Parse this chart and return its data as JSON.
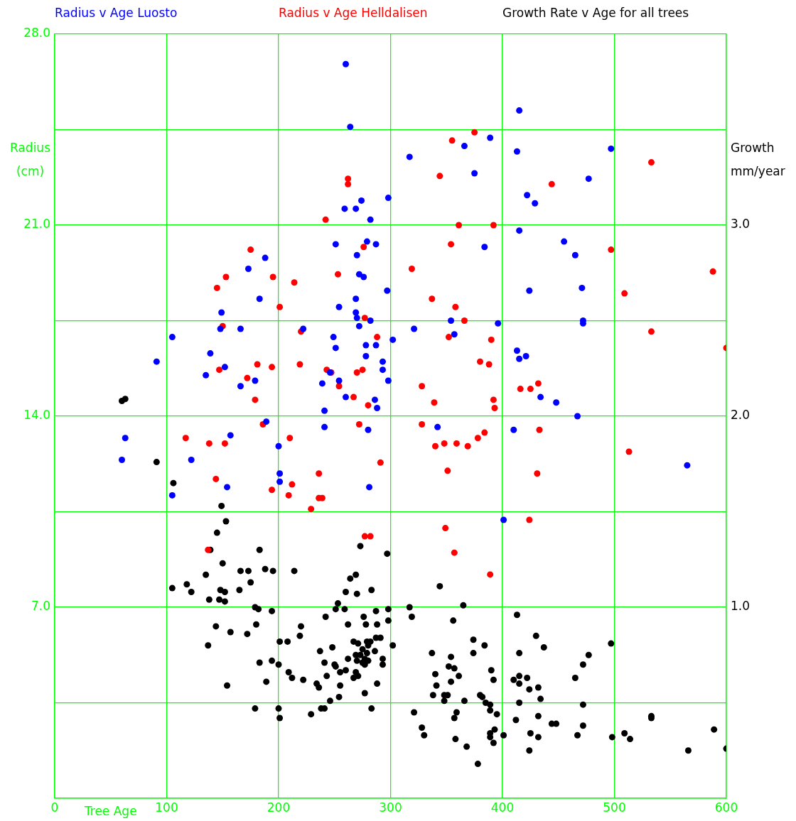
{
  "chart_data": {
    "type": "scatter",
    "xlabel": "Tree Age",
    "ylabel": "Radius\n(cm)",
    "y2label": "Growth\nmm/year",
    "xlim": [
      0,
      600
    ],
    "xticks": [
      0,
      100,
      200,
      300,
      400,
      500,
      600
    ],
    "ylim": [
      0,
      28
    ],
    "yticks": [
      {
        "value": 0,
        "label": null
      },
      {
        "value": 3.5,
        "label": null
      },
      {
        "value": 7,
        "label": "7.0"
      },
      {
        "value": 10.5,
        "label": null
      },
      {
        "value": 14,
        "label": "14.0"
      },
      {
        "value": 17.5,
        "label": null
      },
      {
        "value": 21,
        "label": "21.0"
      },
      {
        "value": 24.5,
        "label": null
      },
      {
        "value": 28,
        "label": "28.0"
      }
    ],
    "y2lim": [
      0,
      4
    ],
    "y2ticks": [
      {
        "value": 1,
        "label": "1.0"
      },
      {
        "value": 2,
        "label": "2.0"
      },
      {
        "value": 3,
        "label": "3.0"
      }
    ],
    "grid": true,
    "legend": "top",
    "marker": "circle",
    "series": [
      {
        "name": "Radius v Age Luosto",
        "color": "#0000ff",
        "x": [
          260,
          415,
          264,
          389,
          366,
          317,
          413,
          497,
          375,
          422,
          429,
          477,
          298,
          274,
          269,
          259,
          282,
          415,
          251,
          279,
          287,
          384,
          455,
          270,
          465,
          173,
          188,
          272,
          276,
          183,
          269,
          297,
          424,
          471,
          149,
          254,
          269,
          270,
          282,
          105,
          148,
          166,
          222,
          272,
          321,
          354,
          357,
          396,
          472,
          472,
          249,
          302,
          91,
          139,
          251,
          278,
          287,
          278,
          413,
          421,
          415,
          135,
          152,
          179,
          246,
          254,
          166,
          239,
          293,
          293,
          298,
          260,
          286,
          288,
          241,
          434,
          448,
          467,
          189,
          241,
          280,
          157,
          63,
          342,
          410,
          200,
          60,
          122,
          201,
          201,
          154,
          281,
          105,
          401,
          565
        ],
        "values": [
          26.9,
          25.2,
          24.6,
          24.2,
          23.9,
          23.5,
          23.7,
          23.8,
          22.9,
          22.1,
          21.8,
          22.7,
          22.0,
          21.9,
          21.6,
          21.6,
          21.2,
          20.8,
          20.3,
          20.4,
          20.3,
          20.2,
          20.4,
          19.9,
          19.9,
          19.4,
          19.8,
          19.2,
          19.1,
          18.3,
          18.3,
          18.6,
          18.6,
          18.7,
          17.8,
          18.0,
          17.8,
          17.6,
          17.5,
          16.9,
          17.2,
          17.2,
          17.2,
          17.3,
          17.2,
          17.5,
          17.0,
          17.4,
          17.5,
          17.4,
          16.9,
          16.8,
          16.0,
          16.3,
          16.5,
          16.6,
          16.6,
          16.2,
          16.4,
          16.2,
          16.1,
          15.5,
          15.8,
          15.3,
          15.6,
          15.3,
          15.1,
          15.2,
          16.0,
          15.7,
          15.3,
          14.7,
          14.6,
          14.3,
          14.2,
          14.7,
          14.5,
          14.0,
          13.8,
          13.6,
          13.5,
          13.3,
          13.2,
          13.6,
          13.5,
          12.9,
          12.4,
          12.4,
          11.9,
          11.6,
          11.4,
          11.4,
          11.1,
          10.2,
          12.2
        ]
      },
      {
        "name": "Radius v Age Helldalisen",
        "color": "#ff0000",
        "x": [
          375,
          355,
          533,
          262,
          262,
          344,
          444,
          242,
          361,
          392,
          354,
          276,
          175,
          497,
          588,
          319,
          253,
          153,
          195,
          214,
          145,
          509,
          337,
          358,
          201,
          366,
          277,
          150,
          220,
          533,
          352,
          288,
          390,
          600,
          380,
          388,
          181,
          194,
          219,
          147,
          172,
          243,
          247,
          275,
          270,
          432,
          416,
          425,
          328,
          254,
          267,
          392,
          393,
          179,
          280,
          339,
          186,
          272,
          328,
          433,
          384,
          348,
          359,
          378,
          369,
          340,
          117,
          138,
          152,
          210,
          291,
          513,
          236,
          212,
          144,
          194,
          209,
          236,
          239,
          229,
          351,
          277,
          282,
          349,
          357,
          389,
          431,
          424,
          137
        ],
        "values": [
          24.4,
          24.1,
          23.3,
          22.7,
          22.5,
          22.8,
          22.5,
          21.2,
          21.0,
          21.0,
          20.3,
          20.2,
          20.1,
          20.1,
          19.3,
          19.4,
          19.2,
          19.1,
          19.1,
          18.9,
          18.7,
          18.5,
          18.3,
          18.0,
          18.0,
          17.5,
          17.6,
          17.3,
          17.1,
          17.1,
          16.9,
          16.9,
          16.8,
          16.5,
          16.0,
          15.9,
          15.9,
          15.8,
          15.9,
          15.7,
          15.4,
          15.7,
          15.6,
          15.7,
          15.6,
          15.2,
          15.0,
          15.0,
          15.1,
          15.1,
          14.7,
          14.6,
          14.3,
          14.6,
          14.4,
          14.5,
          13.7,
          13.7,
          13.7,
          13.5,
          13.4,
          13.0,
          13.0,
          13.2,
          12.9,
          12.9,
          13.2,
          13.0,
          13.0,
          13.2,
          12.3,
          12.7,
          11.9,
          11.5,
          11.7,
          11.3,
          11.1,
          11.0,
          11.0,
          10.6,
          12.0,
          9.6,
          9.6,
          9.9,
          9.0,
          8.2,
          11.9,
          10.2,
          9.1
        ]
      },
      {
        "name": "Growth Rate v Age for all trees",
        "color": "#000000",
        "axis": "y2",
        "x": [
          60,
          63,
          91,
          106,
          149,
          153,
          145,
          139,
          183,
          150,
          135,
          166,
          173,
          188,
          195,
          175,
          105,
          118,
          122,
          148,
          152,
          165,
          138,
          147,
          152,
          179,
          182,
          194,
          180,
          144,
          157,
          172,
          137,
          201,
          183,
          194,
          200,
          189,
          154,
          179,
          200,
          201,
          214,
          273,
          297,
          269,
          264,
          260,
          270,
          283,
          251,
          253,
          259,
          287,
          298,
          298,
          242,
          262,
          276,
          278,
          288,
          220,
          219,
          208,
          267,
          271,
          279,
          282,
          287,
          291,
          302,
          248,
          237,
          275,
          280,
          269,
          273,
          279,
          286,
          262,
          270,
          275,
          277,
          280,
          277,
          293,
          293,
          241,
          250,
          251,
          255,
          260,
          269,
          271,
          267,
          209,
          212,
          222,
          243,
          234,
          236,
          255,
          288,
          254,
          277,
          246,
          238,
          241,
          229,
          283,
          317,
          319,
          344,
          365,
          356,
          374,
          384,
          337,
          354,
          374,
          352,
          357,
          361,
          340,
          341,
          354,
          390,
          392,
          338,
          348,
          348,
          351,
          366,
          380,
          382,
          385,
          389,
          389,
          395,
          321,
          359,
          357,
          328,
          330,
          358,
          368,
          378,
          389,
          389,
          393,
          392,
          401,
          413,
          430,
          437,
          415,
          497,
          477,
          472,
          465,
          410,
          415,
          415,
          422,
          424,
          432,
          434,
          415,
          472,
          412,
          432,
          444,
          448,
          472,
          425,
          432,
          467,
          424,
          498,
          509,
          514,
          533,
          533,
          589,
          566,
          600
        ],
        "values": [
          2.08,
          2.09,
          1.76,
          1.65,
          1.53,
          1.45,
          1.39,
          1.3,
          1.3,
          1.23,
          1.17,
          1.19,
          1.19,
          1.2,
          1.19,
          1.13,
          1.1,
          1.12,
          1.08,
          1.09,
          1.08,
          1.09,
          1.04,
          1.04,
          1.03,
          1.0,
          0.99,
          0.98,
          0.91,
          0.9,
          0.87,
          0.86,
          0.8,
          0.82,
          0.71,
          0.72,
          0.7,
          0.61,
          0.59,
          0.47,
          0.47,
          0.42,
          1.19,
          1.32,
          1.28,
          1.17,
          1.15,
          1.08,
          1.07,
          1.09,
          0.99,
          1.02,
          0.99,
          0.98,
          0.99,
          0.93,
          0.95,
          0.91,
          0.95,
          0.91,
          0.91,
          0.9,
          0.85,
          0.82,
          0.82,
          0.81,
          0.82,
          0.82,
          0.84,
          0.84,
          0.8,
          0.79,
          0.77,
          0.78,
          0.8,
          0.75,
          0.75,
          0.76,
          0.77,
          0.73,
          0.72,
          0.71,
          0.7,
          0.72,
          0.73,
          0.73,
          0.7,
          0.71,
          0.7,
          0.69,
          0.66,
          0.67,
          0.66,
          0.64,
          0.63,
          0.66,
          0.63,
          0.62,
          0.64,
          0.6,
          0.58,
          0.59,
          0.6,
          0.53,
          0.55,
          0.51,
          0.47,
          0.47,
          0.44,
          0.47,
          1.0,
          0.95,
          1.11,
          1.01,
          0.93,
          0.83,
          0.8,
          0.76,
          0.74,
          0.76,
          0.69,
          0.68,
          0.64,
          0.65,
          0.59,
          0.61,
          0.67,
          0.62,
          0.54,
          0.54,
          0.51,
          0.54,
          0.51,
          0.54,
          0.53,
          0.5,
          0.49,
          0.46,
          0.44,
          0.45,
          0.45,
          0.42,
          0.37,
          0.33,
          0.31,
          0.27,
          0.18,
          0.34,
          0.32,
          0.36,
          0.29,
          0.33,
          0.96,
          0.85,
          0.79,
          0.76,
          0.81,
          0.75,
          0.7,
          0.63,
          0.62,
          0.64,
          0.6,
          0.63,
          0.57,
          0.58,
          0.52,
          0.5,
          0.49,
          0.41,
          0.43,
          0.39,
          0.39,
          0.38,
          0.34,
          0.32,
          0.33,
          0.25,
          0.32,
          0.34,
          0.31,
          0.42,
          0.43,
          0.36,
          0.25,
          0.26
        ]
      }
    ]
  }
}
